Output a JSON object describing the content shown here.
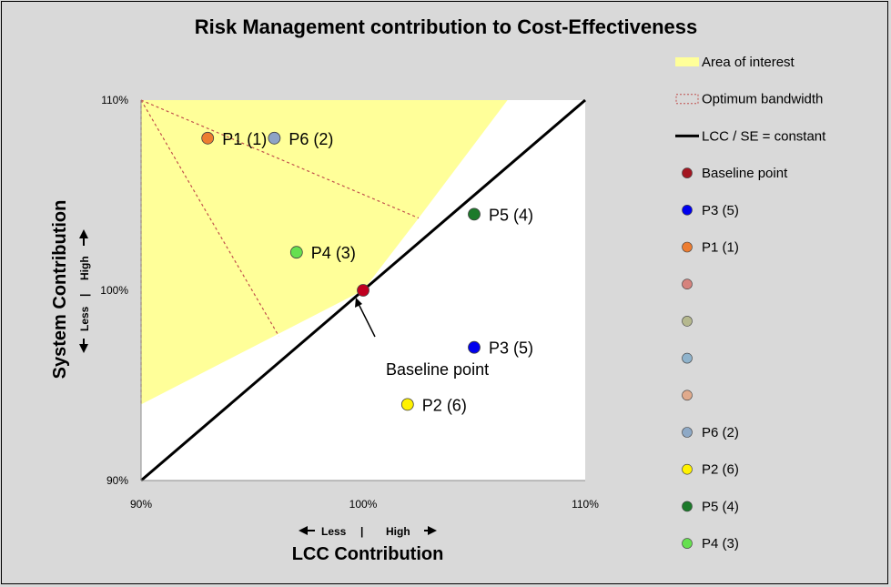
{
  "chart_data": {
    "type": "scatter",
    "title": "Risk Management contribution to Cost-Effectiveness",
    "xlabel": "LCC Contribution",
    "ylabel": "System Contribution",
    "x_direction": {
      "left": "Less",
      "separator": "|",
      "right": "High"
    },
    "y_direction": {
      "bottom": "Less",
      "separator": "|",
      "top": "High"
    },
    "xlim": [
      90,
      110
    ],
    "ylim": [
      90,
      110
    ],
    "x_ticks": [
      "90%",
      "100%",
      "110%"
    ],
    "y_ticks": [
      "90%",
      "100%",
      "110%"
    ],
    "area_of_interest": [
      [
        90,
        110
      ],
      [
        106.5,
        110
      ],
      [
        102.5,
        103.8
      ],
      [
        100,
        100
      ],
      [
        90,
        94
      ]
    ],
    "optimum_bandwidth": [
      {
        "from": [
          90,
          110
        ],
        "to": [
          102.5,
          103.8
        ]
      },
      {
        "from": [
          90,
          110
        ],
        "to": [
          96.2,
          97.6
        ]
      },
      {
        "from": [
          90,
          110
        ],
        "to": [
          90,
          94
        ]
      }
    ],
    "constant_line": {
      "from": [
        90,
        90
      ],
      "to": [
        110,
        110
      ]
    },
    "points": [
      {
        "label": "P1 (1)",
        "x": 93,
        "y": 108,
        "color": "#ed7d31"
      },
      {
        "label": "P6 (2)",
        "x": 96,
        "y": 108,
        "color": "#8ea3c6"
      },
      {
        "label": "P4 (3)",
        "x": 97,
        "y": 102,
        "color": "#66e04f"
      },
      {
        "label": "P5 (4)",
        "x": 105,
        "y": 104,
        "color": "#1c7a2a"
      },
      {
        "label": "P3 (5)",
        "x": 105,
        "y": 97,
        "color": "#0000ee"
      },
      {
        "label": "P2 (6)",
        "x": 102,
        "y": 94,
        "color": "#fff200"
      },
      {
        "label": "Baseline point",
        "x": 100,
        "y": 100,
        "color": "#c00020"
      }
    ],
    "annotation": {
      "text": "Baseline point"
    },
    "legend_position": "right",
    "legend": [
      {
        "label": "Area of interest",
        "kind": "area",
        "color": "#ffff99"
      },
      {
        "label": "Optimum bandwidth",
        "kind": "dashed-box",
        "color": "#c0504d"
      },
      {
        "label": "LCC / SE = constant",
        "kind": "line",
        "color": "#000000"
      },
      {
        "label": "Baseline point",
        "kind": "marker",
        "color": "#a31621"
      },
      {
        "label": "P3 (5)",
        "kind": "marker",
        "color": "#0000ee"
      },
      {
        "label": "P1 (1)",
        "kind": "marker",
        "color": "#ed7d31"
      },
      {
        "label": "",
        "kind": "marker",
        "color": "#d6837d"
      },
      {
        "label": "",
        "kind": "marker",
        "color": "#b5b88e"
      },
      {
        "label": "",
        "kind": "marker",
        "color": "#8fb3cc"
      },
      {
        "label": "",
        "kind": "marker",
        "color": "#e0aa8c"
      },
      {
        "label": "P6 (2)",
        "kind": "marker",
        "color": "#8ea9c6"
      },
      {
        "label": "P2 (6)",
        "kind": "marker",
        "color": "#fff200"
      },
      {
        "label": "P5 (4)",
        "kind": "marker",
        "color": "#1c7a2a"
      },
      {
        "label": "P4 (3)",
        "kind": "marker",
        "color": "#66e04f"
      }
    ]
  }
}
